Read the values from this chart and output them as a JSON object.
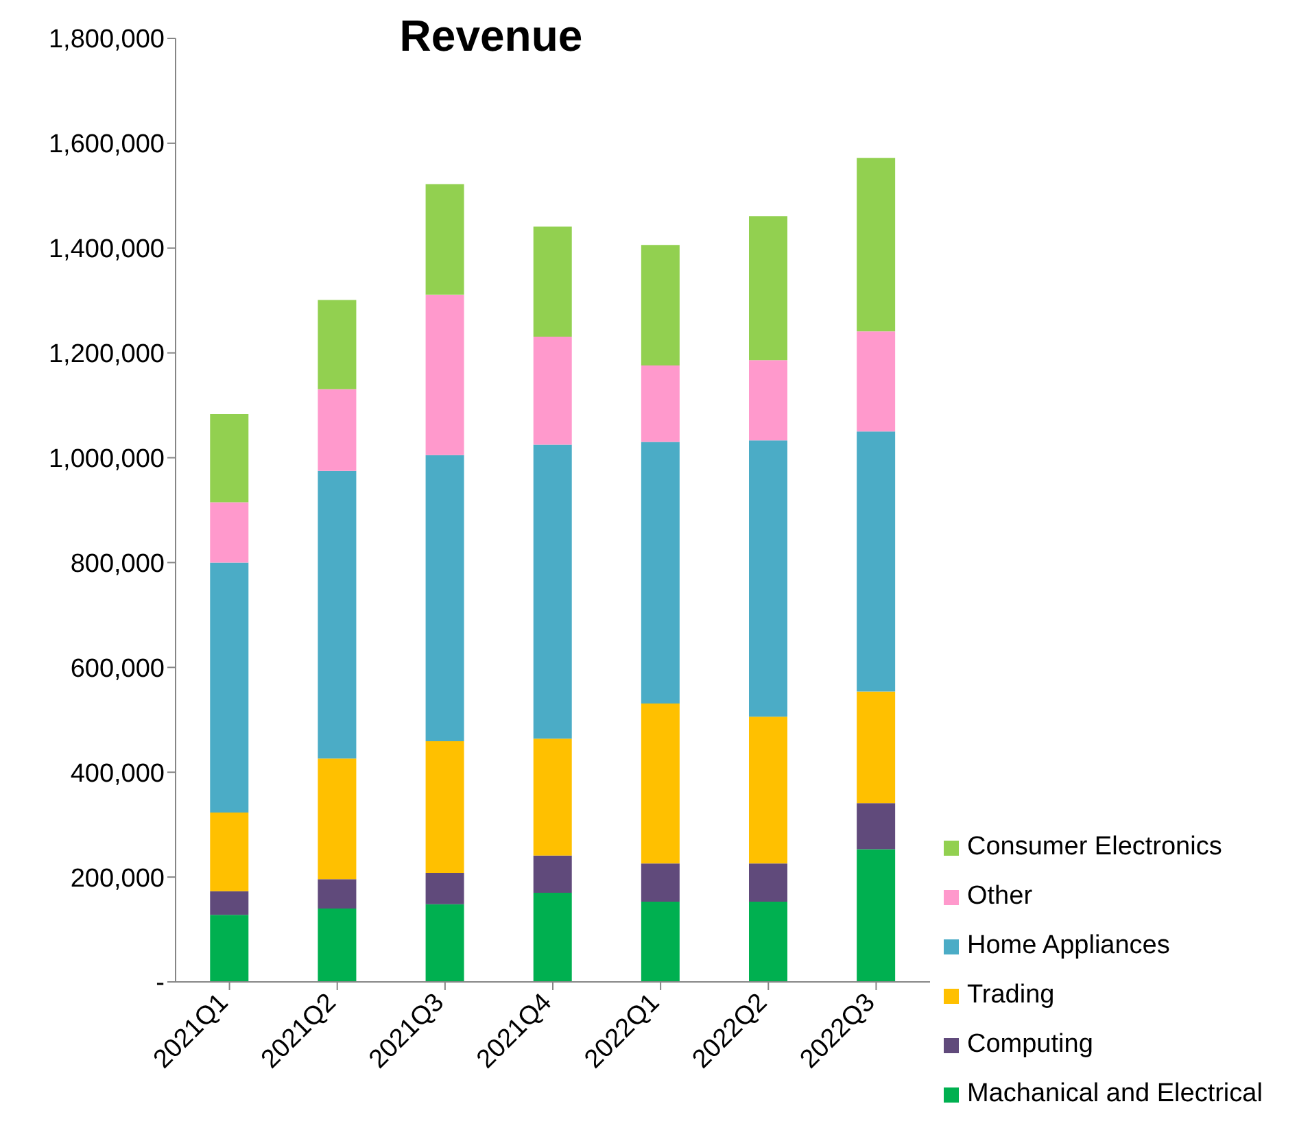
{
  "chart_data": {
    "type": "bar",
    "title": "Revenue",
    "stacked": true,
    "legend": "bottom right",
    "grid": false,
    "categories": [
      "2021Q1",
      "2021Q2",
      "2021Q3",
      "2021Q4",
      "2022Q1",
      "2022Q2",
      "2022Q3"
    ],
    "series": [
      {
        "name": "Machanical and Electrical",
        "color": "#00b050",
        "values": [
          128000,
          140000,
          148000,
          170000,
          153000,
          153000,
          253000
        ]
      },
      {
        "name": "Computing",
        "color": "#604a7b",
        "values": [
          45000,
          56000,
          60000,
          71000,
          73000,
          73000,
          88000
        ]
      },
      {
        "name": "Trading",
        "color": "#ffc000",
        "values": [
          150000,
          230000,
          251000,
          223000,
          305000,
          280000,
          213000
        ]
      },
      {
        "name": "Home Appliances",
        "color": "#4bacc6",
        "values": [
          477000,
          549000,
          546000,
          561000,
          499000,
          527000,
          496000
        ]
      },
      {
        "name": "Other",
        "color": "#ff99cc",
        "values": [
          115000,
          156000,
          306000,
          206000,
          146000,
          153000,
          191000
        ]
      },
      {
        "name": "Consumer Electronics",
        "color": "#92d050",
        "values": [
          168000,
          170000,
          211000,
          210000,
          230000,
          275000,
          331000
        ]
      }
    ],
    "ylim": [
      0,
      1800000
    ],
    "yticks": [
      {
        "value": 0,
        "label": "-"
      },
      {
        "value": 200000,
        "label": "200,000"
      },
      {
        "value": 400000,
        "label": "400,000"
      },
      {
        "value": 600000,
        "label": "600,000"
      },
      {
        "value": 800000,
        "label": "800,000"
      },
      {
        "value": 1000000,
        "label": "1,000,000"
      },
      {
        "value": 1200000,
        "label": "1,200,000"
      },
      {
        "value": 1400000,
        "label": "1,400,000"
      },
      {
        "value": 1600000,
        "label": "1,600,000"
      },
      {
        "value": 1800000,
        "label": "1,800,000"
      }
    ]
  }
}
